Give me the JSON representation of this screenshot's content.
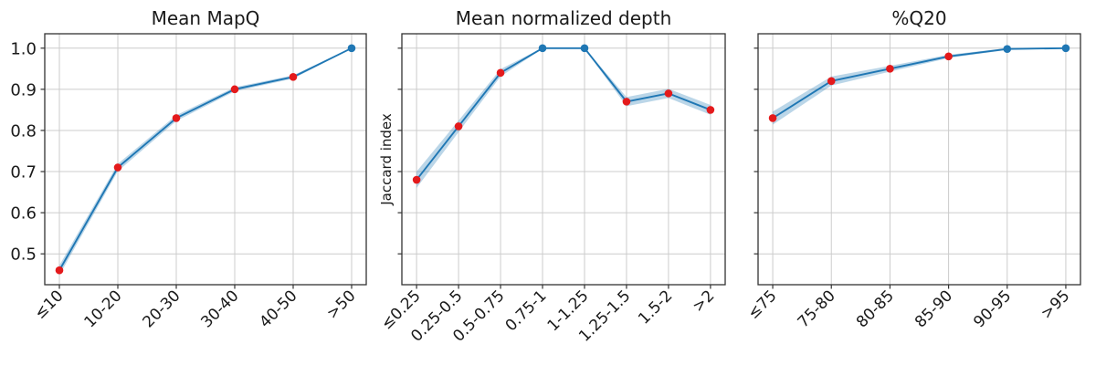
{
  "figure": {
    "background": "#ffffff"
  },
  "colors": {
    "line": "#1f77b4",
    "band": "#1f77b4",
    "band_opacity": 0.3,
    "marker_red": "#e41a1c",
    "marker_blue": "#1f77b4",
    "grid": "#cccccc",
    "spine": "#333333",
    "tick": "#333333",
    "text": "#1a1a1a"
  },
  "y_axis": {
    "label": "Jaccard index",
    "tick_labels": [
      "1.0",
      "0.9",
      "0.8",
      "0.7",
      "0.6",
      "0.5"
    ],
    "tick_values": [
      1.0,
      0.9,
      0.8,
      0.7,
      0.6,
      0.5
    ],
    "ylim": [
      0.425,
      1.035
    ]
  },
  "chart_data": [
    {
      "type": "line",
      "title": "Mean MapQ",
      "categories": [
        "≤10",
        "10-20",
        "20-30",
        "30-40",
        "40-50",
        ">50"
      ],
      "values": [
        0.46,
        0.71,
        0.83,
        0.9,
        0.93,
        1.0
      ],
      "band_halfwidth": [
        0.012,
        0.009,
        0.007,
        0.005,
        0.004,
        0.001
      ],
      "marker_colors": [
        "red",
        "red",
        "red",
        "red",
        "red",
        "blue"
      ],
      "xlabel": "",
      "ylabel": "",
      "show_ytick_labels": true,
      "ylim": [
        0.425,
        1.035
      ],
      "grid": true,
      "legend": null
    },
    {
      "type": "line",
      "title": "Mean normalized depth",
      "categories": [
        "≤0.25",
        "0.25-0.5",
        "0.5-0.75",
        "0.75-1",
        "1-1.25",
        "1.25-1.5",
        "1.5-2",
        ">2"
      ],
      "values": [
        0.68,
        0.81,
        0.94,
        1.0,
        1.0,
        0.87,
        0.89,
        0.85
      ],
      "band_halfwidth": [
        0.02,
        0.014,
        0.009,
        0.001,
        0.001,
        0.011,
        0.011,
        0.012
      ],
      "marker_colors": [
        "red",
        "red",
        "red",
        "blue",
        "blue",
        "red",
        "red",
        "red"
      ],
      "xlabel": "",
      "ylabel": "Jaccard index",
      "show_ytick_labels": false,
      "ylim": [
        0.425,
        1.035
      ],
      "grid": true,
      "legend": null
    },
    {
      "type": "line",
      "title": "%Q20",
      "categories": [
        "≤75",
        "75-80",
        "80-85",
        "85-90",
        "90-95",
        ">95"
      ],
      "values": [
        0.83,
        0.92,
        0.95,
        0.98,
        0.998,
        1.0
      ],
      "band_halfwidth": [
        0.016,
        0.011,
        0.007,
        0.004,
        0.002,
        0.001
      ],
      "marker_colors": [
        "red",
        "red",
        "red",
        "red",
        "blue",
        "blue"
      ],
      "xlabel": "",
      "ylabel": "",
      "show_ytick_labels": false,
      "ylim": [
        0.425,
        1.035
      ],
      "grid": true,
      "legend": null
    }
  ]
}
